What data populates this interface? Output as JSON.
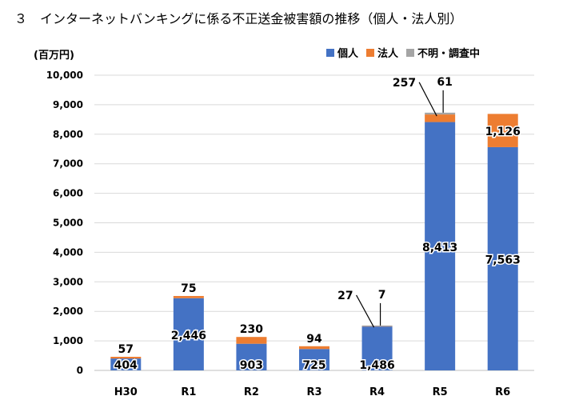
{
  "title": "３　インターネットバンキングに係る不正送金被害額の推移（個人・法人別）",
  "colors": {
    "individual": "#4472C4",
    "corporate": "#ED7D31",
    "unknown": "#A5A5A5",
    "grid": "#D9D9D9"
  },
  "chart_data": {
    "type": "bar",
    "stacked": true,
    "ylabel": "(百万円)",
    "ylim": [
      0,
      10000
    ],
    "yticks": [
      "0",
      "1,000",
      "2,000",
      "3,000",
      "4,000",
      "5,000",
      "6,000",
      "7,000",
      "8,000",
      "9,000",
      "10,000"
    ],
    "legend_position": "top-right",
    "categories": [
      "H30",
      "R1",
      "R2",
      "R3",
      "R4",
      "R5",
      "R6"
    ],
    "series": [
      {
        "name": "個人",
        "key": "individual",
        "values": [
          404,
          2446,
          903,
          725,
          1486,
          8413,
          7563
        ],
        "labels": [
          "404",
          "2,446",
          "903",
          "725",
          "1,486",
          "8,413",
          "7,563"
        ]
      },
      {
        "name": "法人",
        "key": "corporate",
        "values": [
          57,
          75,
          230,
          94,
          27,
          257,
          1126
        ],
        "labels": [
          "57",
          "75",
          "230",
          "94",
          "27",
          "257",
          "1,126"
        ]
      },
      {
        "name": "不明・調査中",
        "key": "unknown",
        "values": [
          0,
          0,
          0,
          0,
          7,
          61,
          0
        ],
        "labels": [
          "",
          "",
          "",
          "",
          "7",
          "61",
          ""
        ]
      }
    ]
  }
}
